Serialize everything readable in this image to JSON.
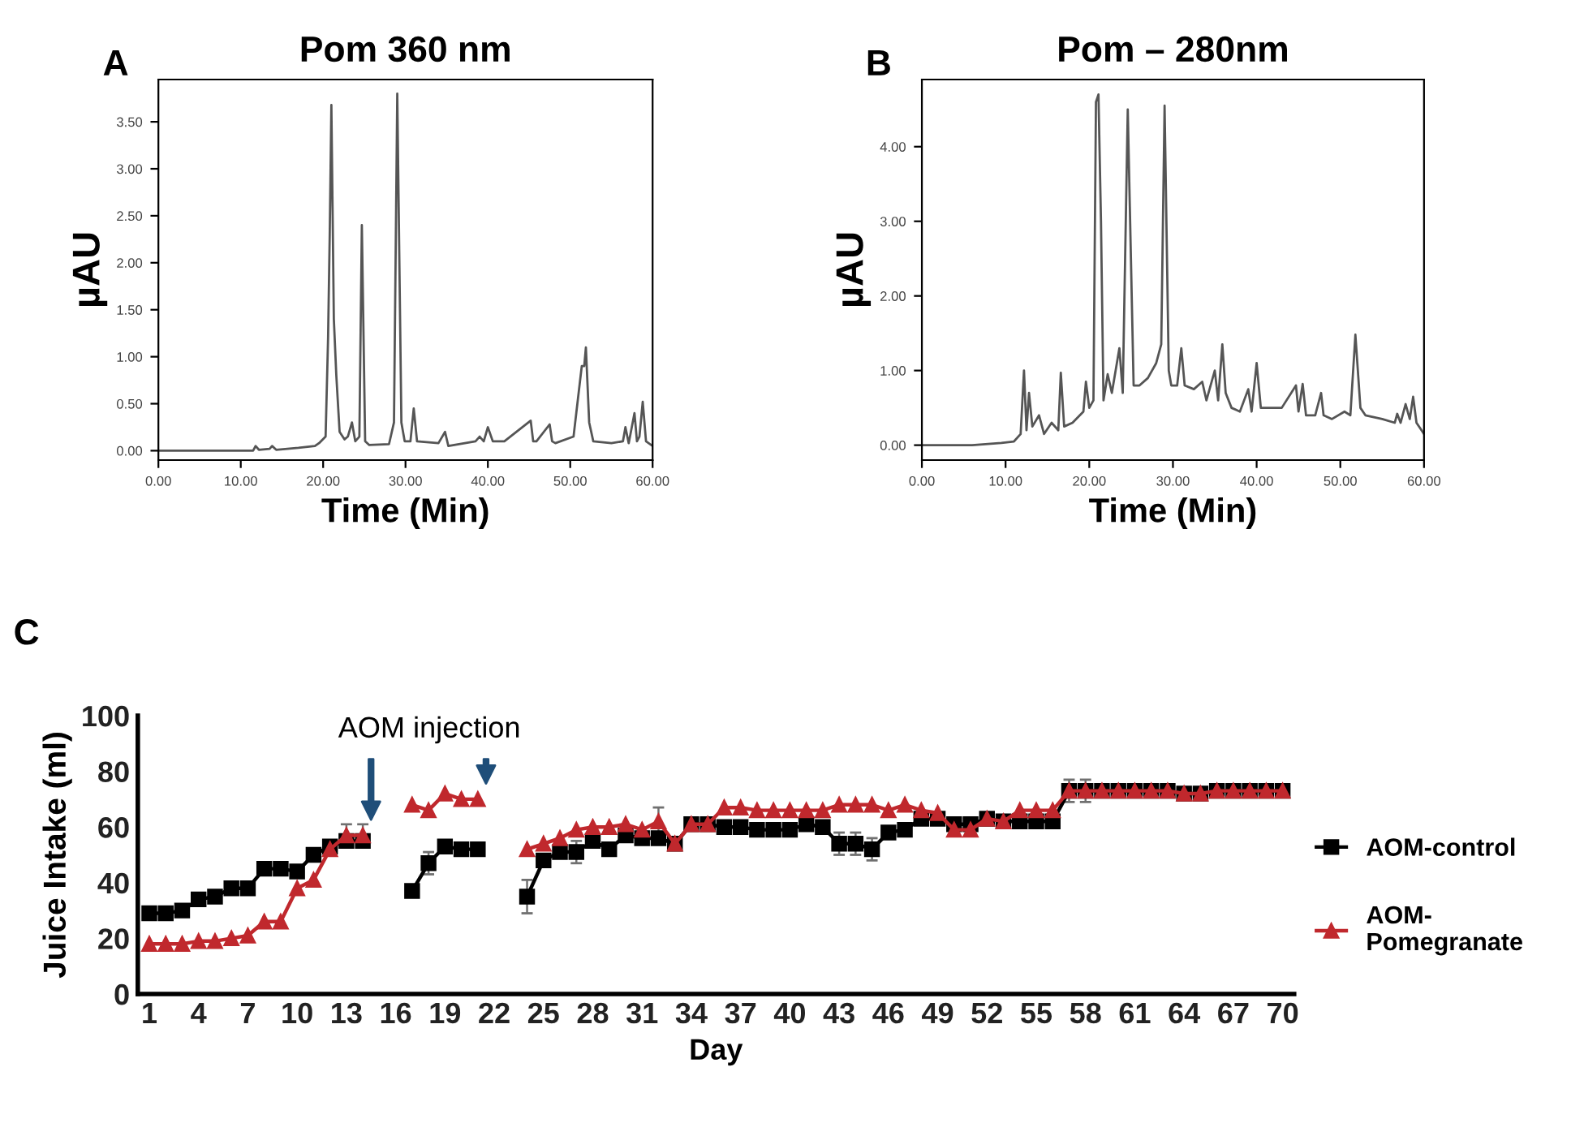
{
  "chart_data": [
    {
      "type": "line",
      "title": "Pom 360 nm",
      "xlabel": "Time (Min)",
      "ylabel": "µAU",
      "annotations": [
        "A"
      ],
      "grid": false,
      "marker": "none",
      "xlim": [
        0,
        60
      ],
      "ylim": [
        -0.1,
        3.95
      ],
      "xticks": [
        {
          "value": 0,
          "label": "0.00"
        },
        {
          "value": 10,
          "label": "10.00"
        },
        {
          "value": 20,
          "label": "20.00"
        },
        {
          "value": 30,
          "label": "30.00"
        },
        {
          "value": 40,
          "label": "40.00"
        },
        {
          "value": 50,
          "label": "50.00"
        },
        {
          "value": 60,
          "label": "60.00"
        }
      ],
      "yticks": [
        {
          "value": 0,
          "label": "0.00"
        },
        {
          "value": 0.5,
          "label": "0.50"
        },
        {
          "value": 1,
          "label": "1.00"
        },
        {
          "value": 1.5,
          "label": "1.50"
        },
        {
          "value": 2,
          "label": "2.00"
        },
        {
          "value": 2.5,
          "label": "2.50"
        },
        {
          "value": 3,
          "label": "3.00"
        },
        {
          "value": 3.5,
          "label": "3.50"
        }
      ],
      "series": [
        {
          "color": "#555555",
          "x": [
            0,
            11.5,
            11.8,
            12.2,
            13.5,
            13.8,
            14.3,
            17,
            19,
            19.5,
            20.3,
            20.6,
            20.8,
            21.0,
            21.3,
            21.6,
            22,
            22.6,
            23.0,
            23.5,
            23.9,
            24.4,
            24.7,
            25.1,
            25.6,
            28,
            28.6,
            29.0,
            29.5,
            29.9,
            30.6,
            31,
            31.4,
            34,
            34.8,
            35.2,
            38.5,
            39,
            39.5,
            40,
            40.6,
            42,
            45.2,
            45.5,
            45.9,
            47.5,
            47.8,
            48.2,
            50.4,
            51.4,
            51.7,
            51.9,
            52.3,
            52.8,
            55,
            56.4,
            56.7,
            57.1,
            57.8,
            58.1,
            58.4,
            58.8,
            59.2,
            60
          ],
          "values": [
            0,
            0,
            0.05,
            0.01,
            0.02,
            0.05,
            0.01,
            0.03,
            0.05,
            0.08,
            0.15,
            1.2,
            2.3,
            3.68,
            1.4,
            0.8,
            0.2,
            0.12,
            0.15,
            0.3,
            0.1,
            0.15,
            2.4,
            0.1,
            0.06,
            0.07,
            0.3,
            3.8,
            0.3,
            0.1,
            0.1,
            0.45,
            0.1,
            0.08,
            0.2,
            0.05,
            0.1,
            0.15,
            0.1,
            0.25,
            0.1,
            0.1,
            0.32,
            0.1,
            0.1,
            0.28,
            0.1,
            0.08,
            0.15,
            0.9,
            0.9,
            1.1,
            0.3,
            0.1,
            0.08,
            0.1,
            0.25,
            0.08,
            0.4,
            0.1,
            0.15,
            0.52,
            0.1,
            0.05
          ]
        }
      ]
    },
    {
      "type": "line",
      "title": "Pom – 280nm",
      "xlabel": "Time (Min)",
      "ylabel": "µAU",
      "annotations": [
        "B"
      ],
      "grid": false,
      "marker": "none",
      "xlim": [
        0,
        60
      ],
      "ylim": [
        -0.2,
        4.9
      ],
      "xticks": [
        {
          "value": 0,
          "label": "0.00"
        },
        {
          "value": 10,
          "label": "10.00"
        },
        {
          "value": 20,
          "label": "20.00"
        },
        {
          "value": 30,
          "label": "30.00"
        },
        {
          "value": 40,
          "label": "40.00"
        },
        {
          "value": 50,
          "label": "50.00"
        },
        {
          "value": 60,
          "label": "60.00"
        }
      ],
      "yticks": [
        {
          "value": 0,
          "label": "0.00"
        },
        {
          "value": 1,
          "label": "1.00"
        },
        {
          "value": 2,
          "label": "2.00"
        },
        {
          "value": 3,
          "label": "3.00"
        },
        {
          "value": 4,
          "label": "4.00"
        }
      ],
      "series": [
        {
          "color": "#555555",
          "x": [
            0,
            6,
            9.5,
            11,
            11.8,
            12.2,
            12.5,
            12.8,
            13.2,
            14,
            14.6,
            15.5,
            16.3,
            16.6,
            17,
            18,
            19.3,
            19.6,
            20,
            20.5,
            20.8,
            21.1,
            21.4,
            21.7,
            22.2,
            22.7,
            23.6,
            24,
            24.6,
            25.3,
            26,
            27,
            28,
            28.6,
            29.0,
            29.5,
            29.8,
            30.5,
            31,
            31.4,
            32.5,
            33.5,
            34,
            35,
            35.4,
            35.9,
            36.3,
            37,
            38,
            39,
            39.4,
            40,
            40.5,
            42,
            43,
            44.7,
            45,
            45.5,
            45.9,
            47,
            47.7,
            48,
            49,
            50.5,
            51.2,
            51.8,
            52.4,
            53,
            55,
            56.5,
            56.8,
            57.2,
            57.8,
            58.3,
            58.7,
            59.1,
            60
          ],
          "values": [
            0,
            0,
            0.03,
            0.05,
            0.15,
            1.0,
            0.2,
            0.7,
            0.25,
            0.4,
            0.15,
            0.3,
            0.2,
            0.97,
            0.25,
            0.3,
            0.45,
            0.85,
            0.5,
            0.6,
            4.6,
            4.7,
            3.0,
            0.6,
            0.95,
            0.7,
            1.3,
            0.7,
            4.5,
            0.8,
            0.8,
            0.9,
            1.1,
            1.35,
            4.55,
            1.0,
            0.8,
            0.8,
            1.3,
            0.8,
            0.75,
            0.85,
            0.6,
            1.0,
            0.6,
            1.35,
            0.7,
            0.5,
            0.45,
            0.75,
            0.45,
            1.1,
            0.5,
            0.5,
            0.5,
            0.8,
            0.45,
            0.82,
            0.4,
            0.4,
            0.7,
            0.4,
            0.35,
            0.45,
            0.4,
            1.48,
            0.5,
            0.4,
            0.35,
            0.3,
            0.42,
            0.3,
            0.55,
            0.35,
            0.65,
            0.3,
            0.15
          ]
        }
      ]
    },
    {
      "type": "line",
      "xlabel": "Day",
      "ylabel": "Juice Intake (ml)",
      "legend": "right",
      "grid": false,
      "ylim": [
        0,
        100
      ],
      "yticks": [
        0,
        20,
        40,
        60,
        80,
        100
      ],
      "annotations": [
        "C",
        "AOM injection"
      ],
      "categories": [
        "1",
        null,
        null,
        "4",
        null,
        null,
        "7",
        null,
        null,
        "10",
        null,
        null,
        "13",
        null,
        null,
        "16",
        null,
        null,
        "19",
        null,
        null,
        "22",
        null,
        null,
        "25",
        null,
        null,
        "28",
        null,
        null,
        "31",
        null,
        null,
        "34",
        null,
        null,
        "37",
        null,
        null,
        "40",
        null,
        null,
        "43",
        null,
        null,
        "46",
        null,
        null,
        "49",
        null,
        null,
        "52",
        null,
        null,
        "55",
        null,
        null,
        "58",
        null,
        null,
        "61",
        null,
        null,
        "64",
        null,
        null,
        "67",
        null,
        null,
        "70"
      ],
      "series": [
        {
          "name": "AOM-control",
          "color": "#000000",
          "marker": "square",
          "values": [
            29,
            29,
            30,
            34,
            35,
            38,
            38,
            45,
            45,
            44,
            50,
            53,
            55,
            55,
            null,
            null,
            37,
            47,
            53,
            52,
            52,
            null,
            null,
            35,
            48,
            51,
            51,
            55,
            52,
            57,
            56,
            56,
            54,
            61,
            61,
            60,
            60,
            59,
            59,
            59,
            61,
            60,
            54,
            54,
            52,
            58,
            59,
            63,
            63,
            61,
            61,
            63,
            62,
            62,
            62,
            62,
            73,
            73,
            73,
            73,
            73,
            73,
            73,
            72,
            72,
            73,
            73,
            73,
            73,
            73
          ],
          "errors": [
            null,
            null,
            null,
            null,
            null,
            null,
            null,
            null,
            null,
            null,
            null,
            null,
            null,
            null,
            null,
            null,
            null,
            4,
            null,
            null,
            null,
            null,
            null,
            6,
            null,
            null,
            4,
            null,
            null,
            null,
            null,
            null,
            null,
            null,
            null,
            null,
            null,
            null,
            null,
            null,
            null,
            null,
            4,
            4,
            4,
            null,
            null,
            null,
            null,
            null,
            null,
            null,
            null,
            null,
            null,
            null,
            null,
            null,
            null,
            null,
            null,
            null,
            null,
            null,
            null,
            null,
            null,
            null,
            null,
            null
          ]
        },
        {
          "name": "AOM-\nPomegranate",
          "color": "#c0282d",
          "marker": "triangle",
          "values": [
            18,
            18,
            18,
            19,
            19,
            20,
            21,
            26,
            26,
            38,
            41,
            52,
            57,
            57,
            null,
            null,
            68,
            66,
            72,
            70,
            70,
            null,
            null,
            52,
            54,
            56,
            59,
            60,
            60,
            61,
            59,
            62,
            54,
            61,
            61,
            67,
            67,
            66,
            66,
            66,
            66,
            66,
            68,
            68,
            68,
            66,
            68,
            66,
            65,
            59,
            59,
            63,
            62,
            66,
            66,
            66,
            73,
            73,
            73,
            73,
            73,
            73,
            73,
            72,
            72,
            73,
            73,
            73,
            73,
            73
          ],
          "errors": [
            null,
            null,
            null,
            null,
            null,
            null,
            null,
            null,
            null,
            null,
            null,
            null,
            4,
            4,
            null,
            null,
            null,
            null,
            null,
            null,
            null,
            null,
            null,
            null,
            null,
            null,
            null,
            null,
            null,
            null,
            null,
            5,
            null,
            null,
            null,
            null,
            null,
            null,
            null,
            null,
            null,
            null,
            null,
            null,
            null,
            null,
            null,
            null,
            null,
            null,
            null,
            null,
            null,
            null,
            null,
            null,
            4,
            4,
            null,
            null,
            null,
            null,
            null,
            null,
            null,
            null,
            null,
            null,
            null,
            null
          ]
        }
      ]
    }
  ]
}
